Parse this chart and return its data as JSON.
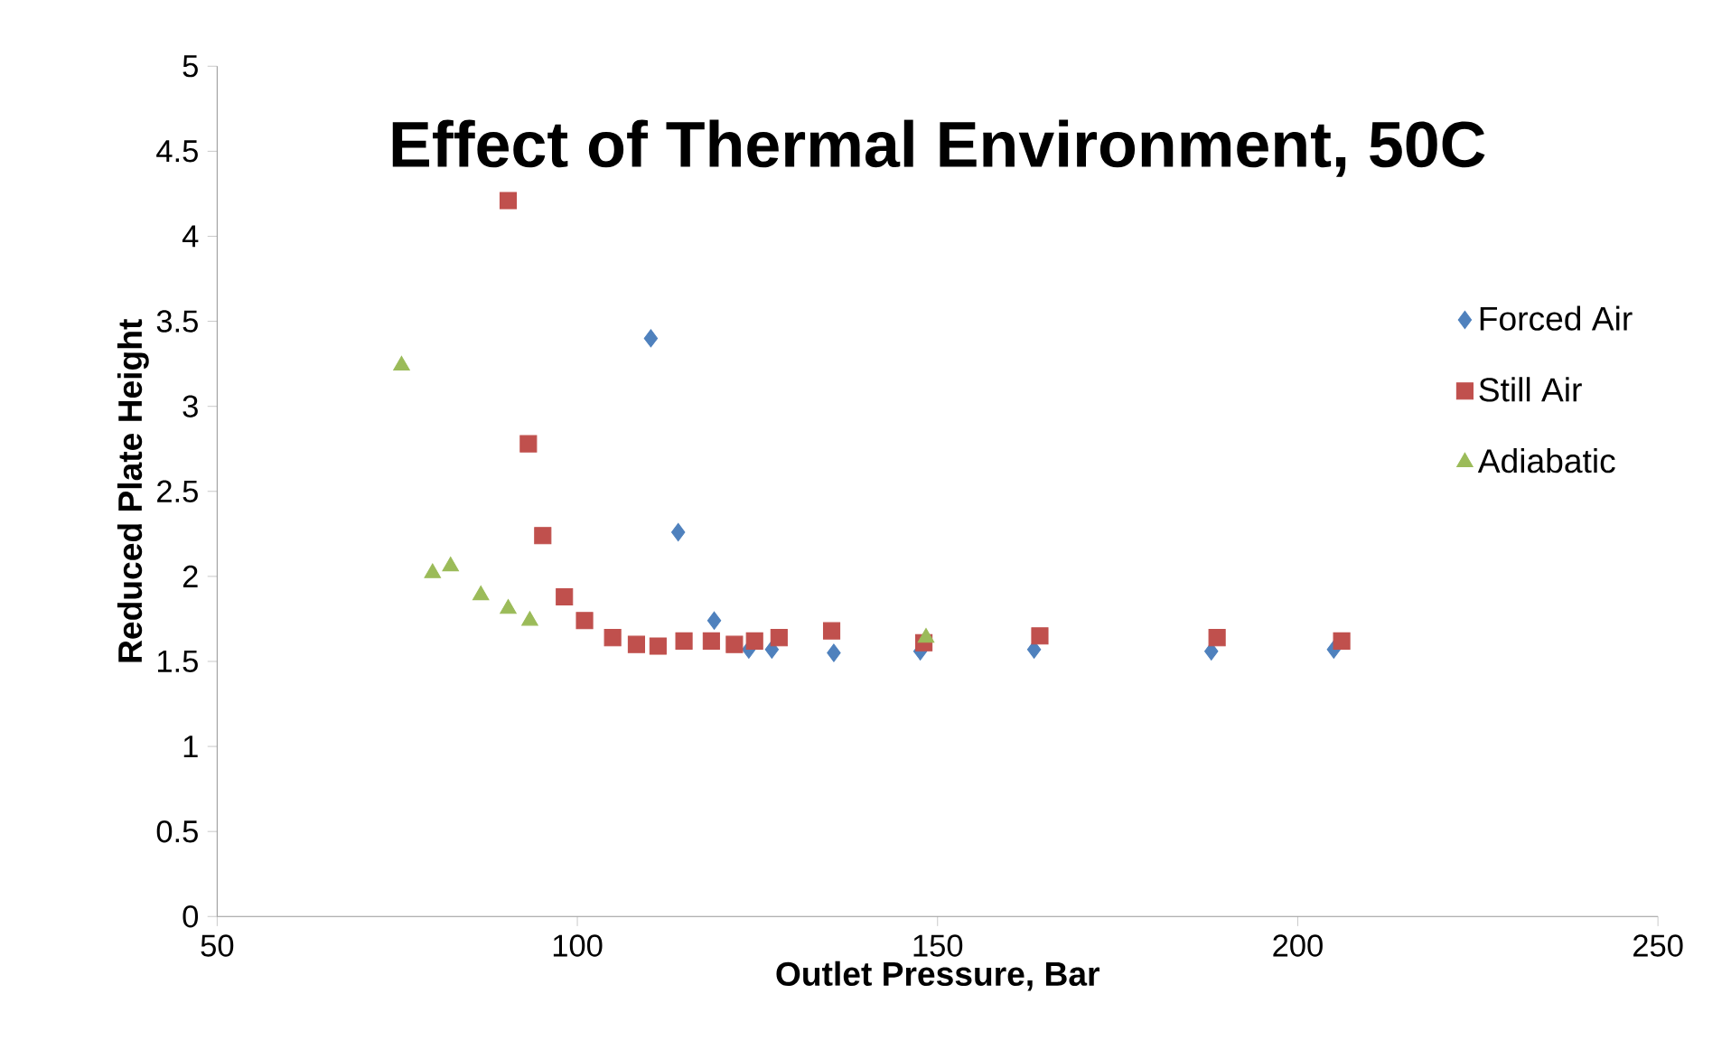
{
  "chart_data": {
    "type": "scatter",
    "title": "Effect of Thermal Environment, 50C",
    "xlabel": "Outlet Pressure, Bar",
    "ylabel": "Reduced Plate Height",
    "xlim": [
      50,
      250
    ],
    "xticks": [
      50,
      100,
      150,
      200,
      250
    ],
    "ylim": [
      0,
      5
    ],
    "yticks": [
      0,
      0.5,
      1,
      1.5,
      2,
      2.5,
      3,
      3.5,
      4,
      4.5,
      5
    ],
    "grid": false,
    "legend": "right",
    "series": [
      {
        "name": "Forced Air",
        "color": "#4f81bd",
        "marker": "diamond",
        "x": [
          110.2,
          114.0,
          119.0,
          123.8,
          127.0,
          135.6,
          147.6,
          163.4,
          188.0,
          205.0
        ],
        "values": [
          3.4,
          2.26,
          1.74,
          1.57,
          1.57,
          1.55,
          1.56,
          1.57,
          1.56,
          1.57
        ]
      },
      {
        "name": "Still Air",
        "color": "#c0504d",
        "marker": "square",
        "x": [
          90.4,
          93.2,
          95.2,
          98.2,
          101.0,
          104.9,
          108.2,
          111.2,
          114.8,
          118.6,
          121.8,
          124.6,
          128.0,
          135.3,
          148.1,
          164.2,
          188.8,
          206.1
        ],
        "values": [
          4.21,
          2.78,
          2.24,
          1.88,
          1.74,
          1.64,
          1.6,
          1.59,
          1.62,
          1.62,
          1.6,
          1.62,
          1.64,
          1.68,
          1.61,
          1.65,
          1.64,
          1.62
        ]
      },
      {
        "name": "Adiabatic",
        "color": "#9bbb59",
        "marker": "triangle",
        "x": [
          75.6,
          79.9,
          82.4,
          86.6,
          90.4,
          93.4,
          148.4
        ],
        "values": [
          3.24,
          2.02,
          2.06,
          1.89,
          1.81,
          1.74,
          1.64
        ]
      }
    ]
  }
}
